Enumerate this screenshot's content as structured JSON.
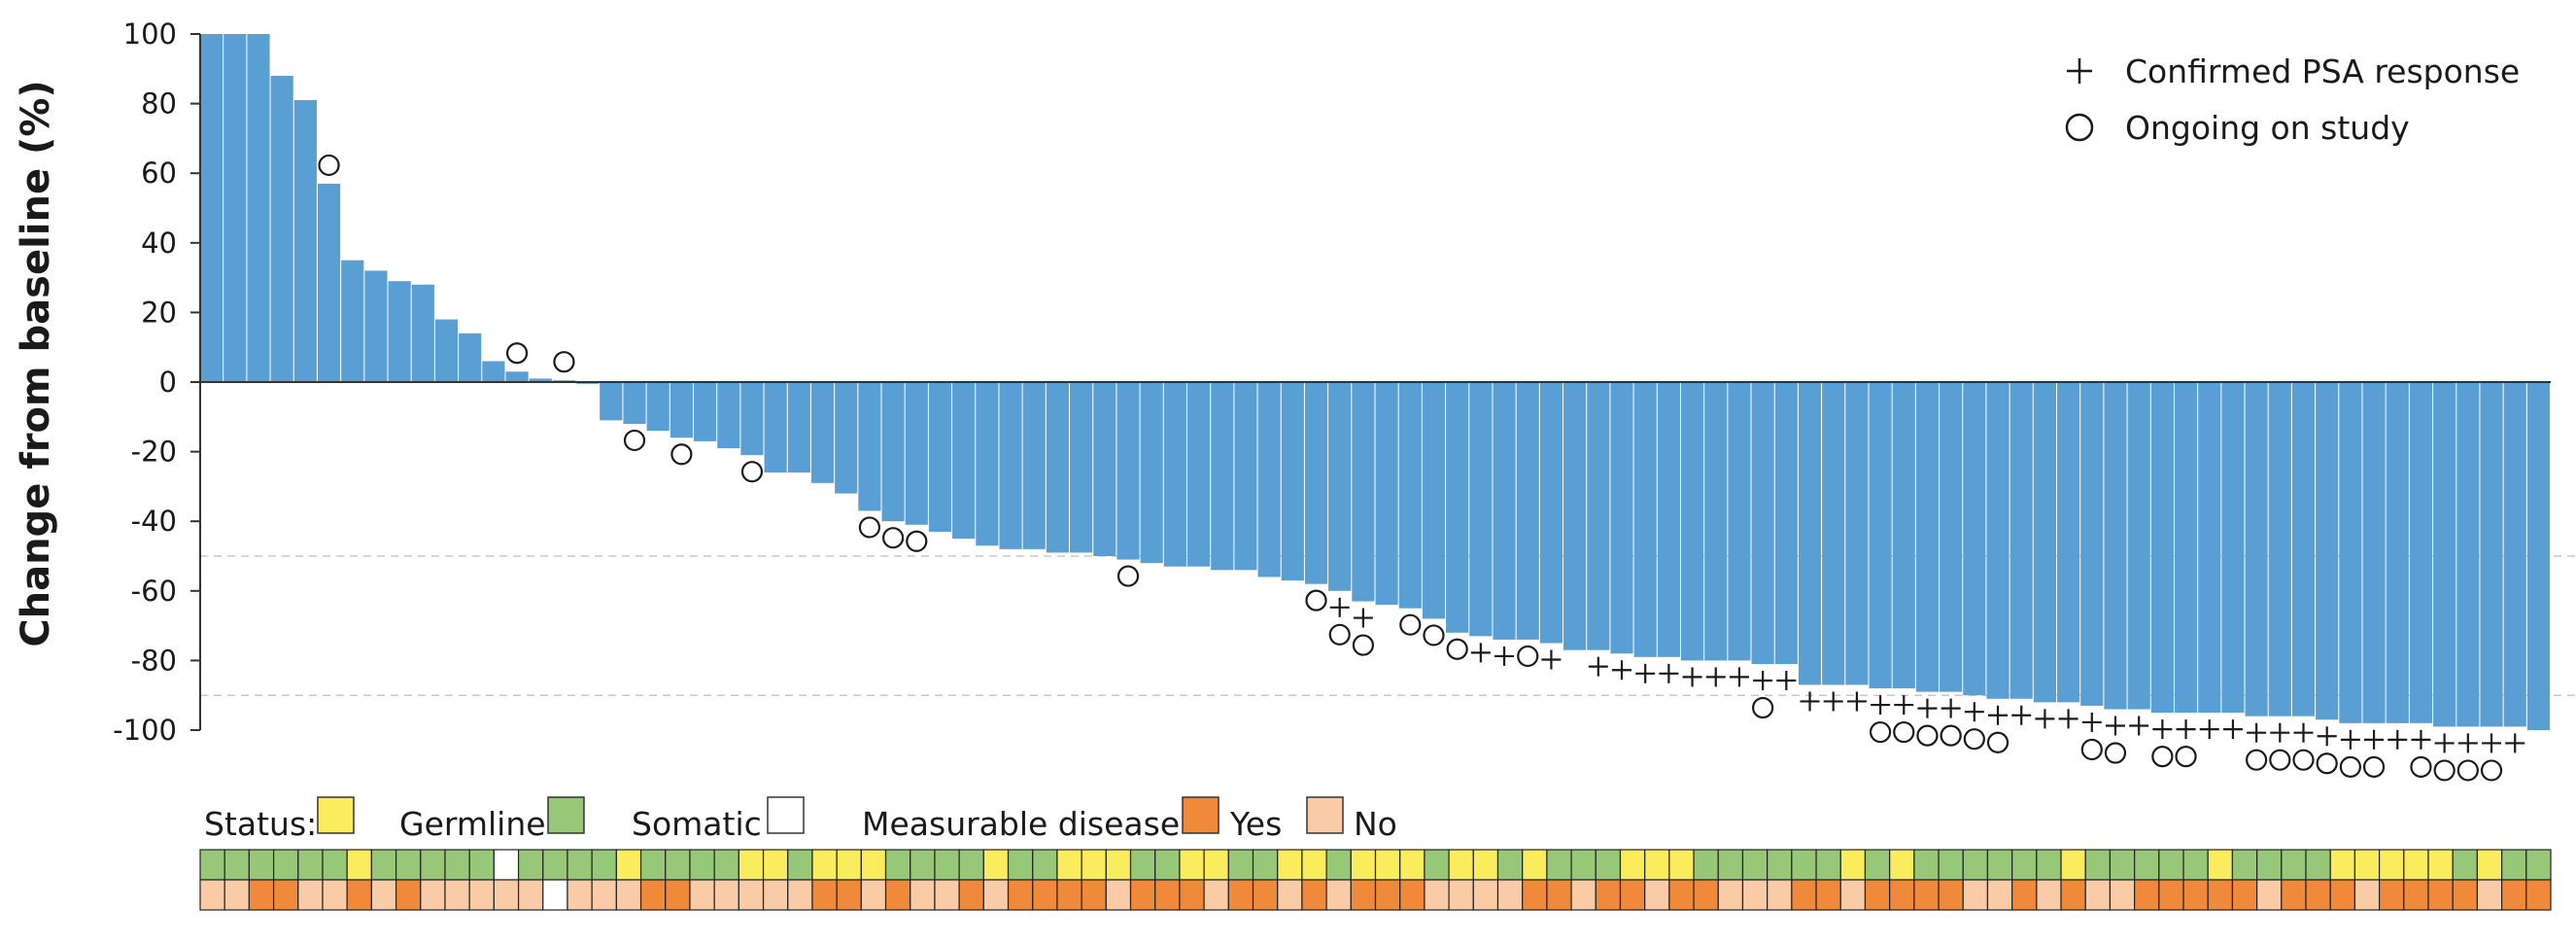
{
  "chart_data": {
    "type": "bar",
    "ylabel": "Change from baseline (%)",
    "ylim": [
      -100,
      100
    ],
    "yticks": [
      "100",
      "80",
      "60",
      "40",
      "20",
      "0",
      "-20",
      "-40",
      "-60",
      "-80",
      "-100"
    ],
    "reference_lines": [
      -50,
      -90
    ],
    "bar_color": "#5a9fd4",
    "values": [
      100,
      100,
      100,
      88,
      81,
      57,
      35,
      32,
      29,
      28,
      18,
      14,
      6,
      3,
      1,
      0.5,
      -0.5,
      -11,
      -12,
      -14,
      -16,
      -17,
      -19,
      -21,
      -26,
      -26,
      -29,
      -32,
      -37,
      -40,
      -41,
      -43,
      -45,
      -47,
      -48,
      -48,
      -49,
      -49,
      -50,
      -51,
      -52,
      -53,
      -53,
      -54,
      -54,
      -56,
      -57,
      -58,
      -60,
      -63,
      -64,
      -65,
      -68,
      -72,
      -73,
      -74,
      -74,
      -75,
      -77,
      -77,
      -78,
      -79,
      -79,
      -80,
      -80,
      -80,
      -81,
      -81,
      -87,
      -87,
      -87,
      -88,
      -88,
      -89,
      -89,
      -90,
      -91,
      -91,
      -92,
      -92,
      -93,
      -94,
      -94,
      -95,
      -95,
      -95,
      -95,
      -96,
      -96,
      -96,
      -97,
      -98,
      -98,
      -98,
      -98,
      -99,
      -99,
      -99,
      -99,
      -100
    ],
    "psa_response": [
      48,
      49,
      54,
      55,
      57,
      59,
      60,
      61,
      62,
      63,
      64,
      65,
      66,
      67,
      68,
      69,
      70,
      71,
      72,
      73,
      74,
      75,
      76,
      77,
      78,
      79,
      80,
      81,
      82,
      83,
      84,
      85,
      86,
      87,
      88,
      89,
      90,
      91,
      92,
      93,
      94,
      95,
      96,
      97,
      98
    ],
    "ongoing": [
      5,
      13,
      15,
      18,
      20,
      23,
      28,
      29,
      30,
      39,
      47,
      48,
      49,
      51,
      52,
      53,
      56,
      66,
      71,
      72,
      73,
      74,
      75,
      76,
      80,
      81,
      83,
      84,
      87,
      88,
      89,
      90,
      91,
      92,
      94,
      95,
      96,
      97
    ],
    "legend": [
      {
        "symbol": "plus",
        "label": "Confirmed PSA response"
      },
      {
        "symbol": "circle",
        "label": "Ongoing on study"
      }
    ],
    "status": "GGGGGGYGGGGGWGGGGYGGGGYYGYYYGGGGYGGYYYGGYYGGYYGYYYGYYGYGGGYYYGGGGGGYGYGGGGGGYGGGGGYGGGGYYYYYGYGG",
    "measurable": "NNYYNNYNYNNNNNWNNNYYNNNNNYYNYNNYNYYYYNYYYNYYNYNYYYNNNNYYNYYNYYNNNYYNYYYYNNYNYNNYYYYYNYYYNYYYYNYYY",
    "status_colors": {
      "Germline": "#fbec5d",
      "Somatic": "#96c877",
      "Unknown": "#ffffff"
    },
    "measurable_colors": {
      "Yes": "#f08a3a",
      "No": "#f9cba7"
    }
  },
  "legend_block": {
    "psa_label": "Confirmed PSA response",
    "ongoing_label": "Ongoing on study"
  },
  "status_legend": {
    "status_label": "Status:",
    "germline_label": "Germline",
    "somatic_label": "Somatic",
    "measurable_label": "Measurable disease",
    "yes_label": "Yes",
    "no_label": "No"
  }
}
